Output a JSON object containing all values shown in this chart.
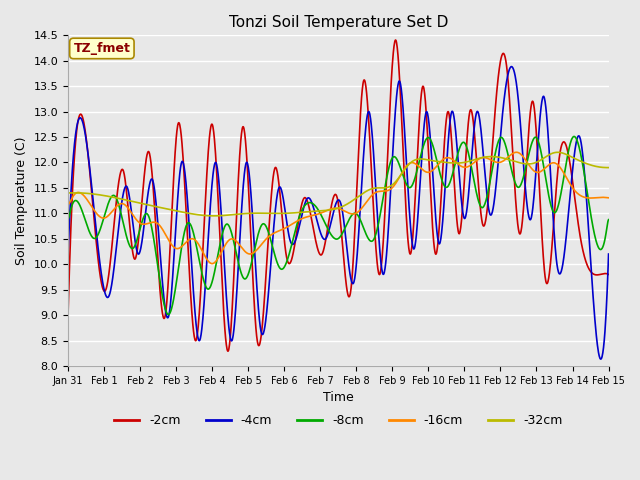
{
  "title": "Tonzi Soil Temperature Set D",
  "xlabel": "Time",
  "ylabel": "Soil Temperature (C)",
  "ylim": [
    8.0,
    14.5
  ],
  "annotation_text": "TZ_fmet",
  "annotation_color": "#8B0000",
  "annotation_bg": "#FFFFCC",
  "series_colors": {
    "-2cm": "#CC0000",
    "-4cm": "#0000CC",
    "-8cm": "#00AA00",
    "-16cm": "#FF8800",
    "-32cm": "#BBBB00"
  },
  "series_linewidth": 1.2,
  "background_color": "#E8E8E8",
  "x_tick_labels": [
    "Jan 31",
    "Feb 1",
    "Feb 2",
    "Feb 3",
    "Feb 4",
    "Feb 5",
    "Feb 6",
    "Feb 7",
    "Feb 8",
    "Feb 9",
    "Feb 10",
    "Feb 11",
    "Feb 12",
    "Feb 13",
    "Feb 14",
    "Feb 15"
  ],
  "figsize": [
    6.4,
    4.8
  ],
  "dpi": 100
}
